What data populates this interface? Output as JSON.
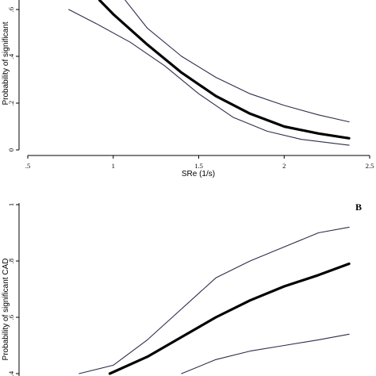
{
  "chart_data": [
    {
      "type": "line",
      "panel_letter": "",
      "xlabel": "SRe (1/s)",
      "ylabel": "Probability of significant",
      "xlim": [
        0.5,
        2.5
      ],
      "ylim": [
        0,
        0.6
      ],
      "xticks": [
        {
          "value": 0.5,
          "label": ".5"
        },
        {
          "value": 1,
          "label": "1"
        },
        {
          "value": 1.5,
          "label": "1.5"
        },
        {
          "value": 2,
          "label": "2"
        },
        {
          "value": 2.5,
          "label": "2.5"
        }
      ],
      "yticks": [
        {
          "value": 0,
          "label": "0"
        },
        {
          "value": 0.2,
          "label": ".2"
        },
        {
          "value": 0.4,
          "label": ".4"
        },
        {
          "value": 0.6,
          "label": ".6"
        }
      ],
      "grid": false,
      "series": [
        {
          "role": "upper",
          "color": "#2a2e4a",
          "x": [
            1.07,
            1.2,
            1.4,
            1.6,
            1.8,
            2.0,
            2.2,
            2.38
          ],
          "y": [
            0.64,
            0.52,
            0.4,
            0.31,
            0.24,
            0.19,
            0.15,
            0.12
          ]
        },
        {
          "role": "estimate",
          "color": "#000000",
          "x": [
            0.92,
            1.0,
            1.2,
            1.4,
            1.6,
            1.8,
            2.0,
            2.2,
            2.38
          ],
          "y": [
            0.64,
            0.58,
            0.45,
            0.33,
            0.23,
            0.155,
            0.1,
            0.07,
            0.05
          ]
        },
        {
          "role": "lower",
          "color": "#2a2e4a",
          "x": [
            0.74,
            0.9,
            1.1,
            1.3,
            1.5,
            1.7,
            1.9,
            2.1,
            2.38
          ],
          "y": [
            0.6,
            0.54,
            0.46,
            0.36,
            0.24,
            0.14,
            0.08,
            0.045,
            0.02
          ]
        }
      ]
    },
    {
      "type": "line",
      "panel_letter": "B",
      "xlabel": "",
      "ylabel": "Probability of significant CAD",
      "xlim": [
        0.5,
        2.5
      ],
      "ylim": [
        0.4,
        1
      ],
      "xticks": [],
      "yticks": [
        {
          "value": 0.4,
          "label": ".4"
        },
        {
          "value": 0.6,
          "label": ".6"
        },
        {
          "value": 0.8,
          "label": ".8"
        },
        {
          "value": 1,
          "label": "1"
        }
      ],
      "grid": false,
      "series": [
        {
          "role": "upper",
          "color": "#2a2e4a",
          "x": [
            0.8,
            1.0,
            1.2,
            1.4,
            1.6,
            1.8,
            2.0,
            2.2,
            2.38
          ],
          "y": [
            0.4,
            0.43,
            0.52,
            0.63,
            0.74,
            0.8,
            0.85,
            0.9,
            0.92
          ]
        },
        {
          "role": "estimate",
          "color": "#000000",
          "x": [
            0.98,
            1.2,
            1.4,
            1.6,
            1.8,
            2.0,
            2.2,
            2.38
          ],
          "y": [
            0.4,
            0.46,
            0.53,
            0.6,
            0.66,
            0.71,
            0.75,
            0.79
          ]
        },
        {
          "role": "lower",
          "color": "#2a2e4a",
          "x": [
            1.4,
            1.6,
            1.8,
            2.0,
            2.2,
            2.38
          ],
          "y": [
            0.4,
            0.45,
            0.48,
            0.5,
            0.52,
            0.54
          ]
        }
      ]
    }
  ]
}
